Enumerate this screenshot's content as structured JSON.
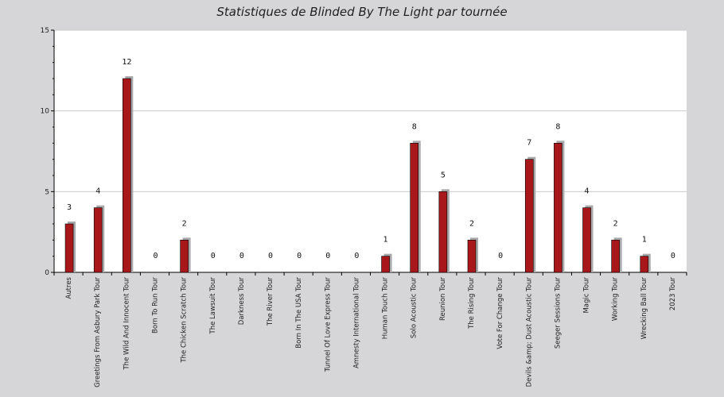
{
  "chart_data": {
    "type": "bar",
    "title": "Statistiques de Blinded By The Light par tournée",
    "xlabel": "",
    "ylabel": "",
    "ylim": [
      0,
      15
    ],
    "yticks": [
      0,
      5,
      10,
      15
    ],
    "grid": true,
    "legend": "none",
    "categories": [
      "Autres",
      "Greetings From Asbury Park Tour",
      "The Wild And Innocent Tour",
      "Born To Run Tour",
      "The Chicken Scratch Tour",
      "The Lawsuit Tour",
      "Darkness Tour",
      "The River Tour",
      "Born In The USA Tour",
      "Tunnel Of Love Express Tour",
      "Amnesty International Tour",
      "Human Touch Tour",
      "Solo Acoustic Tour",
      "Reunion Tour",
      "The Rising Tour",
      "Vote For Change Tour",
      "Devils &amp; Dust Acoustic Tour",
      "Seeger Sessions Tour",
      "Magic Tour",
      "Working Tour",
      "Wrecking Ball Tour",
      "2023 Tour"
    ],
    "values": [
      3,
      4,
      12,
      0,
      2,
      0,
      0,
      0,
      0,
      0,
      0,
      1,
      8,
      5,
      2,
      0,
      7,
      8,
      4,
      2,
      1,
      0
    ],
    "colors": {
      "bar": "#a8171a",
      "bar_shadow": "#a9a9ab",
      "plot_bg": "#ffffff",
      "page_bg": "#d6d6d9",
      "grid": "#cccccc"
    }
  }
}
